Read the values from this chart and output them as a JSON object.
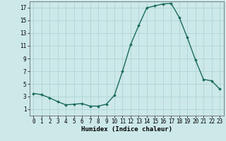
{
  "x": [
    0,
    1,
    2,
    3,
    4,
    5,
    6,
    7,
    8,
    9,
    10,
    11,
    12,
    13,
    14,
    15,
    16,
    17,
    18,
    19,
    20,
    21,
    22,
    23
  ],
  "y": [
    3.5,
    3.3,
    2.8,
    2.2,
    1.7,
    1.8,
    1.9,
    1.5,
    1.5,
    1.8,
    3.2,
    7.0,
    11.2,
    14.2,
    17.0,
    17.3,
    17.6,
    17.7,
    15.5,
    12.3,
    8.8,
    5.7,
    5.5,
    4.2
  ],
  "line_color": "#1a6b5a",
  "marker": "D",
  "marker_size": 2.0,
  "linewidth": 1.0,
  "bg_color": "#cce8e8",
  "grid_color": "#b0d4d4",
  "xlabel": "Humidex (Indice chaleur)",
  "xlim": [
    -0.5,
    23.5
  ],
  "ylim": [
    0,
    18
  ],
  "yticks": [
    1,
    3,
    5,
    7,
    9,
    11,
    13,
    15,
    17
  ],
  "xticks": [
    0,
    1,
    2,
    3,
    4,
    5,
    6,
    7,
    8,
    9,
    10,
    11,
    12,
    13,
    14,
    15,
    16,
    17,
    18,
    19,
    20,
    21,
    22,
    23
  ],
  "xlabel_fontsize": 6.5,
  "tick_fontsize": 5.5,
  "spine_color": "#555555"
}
